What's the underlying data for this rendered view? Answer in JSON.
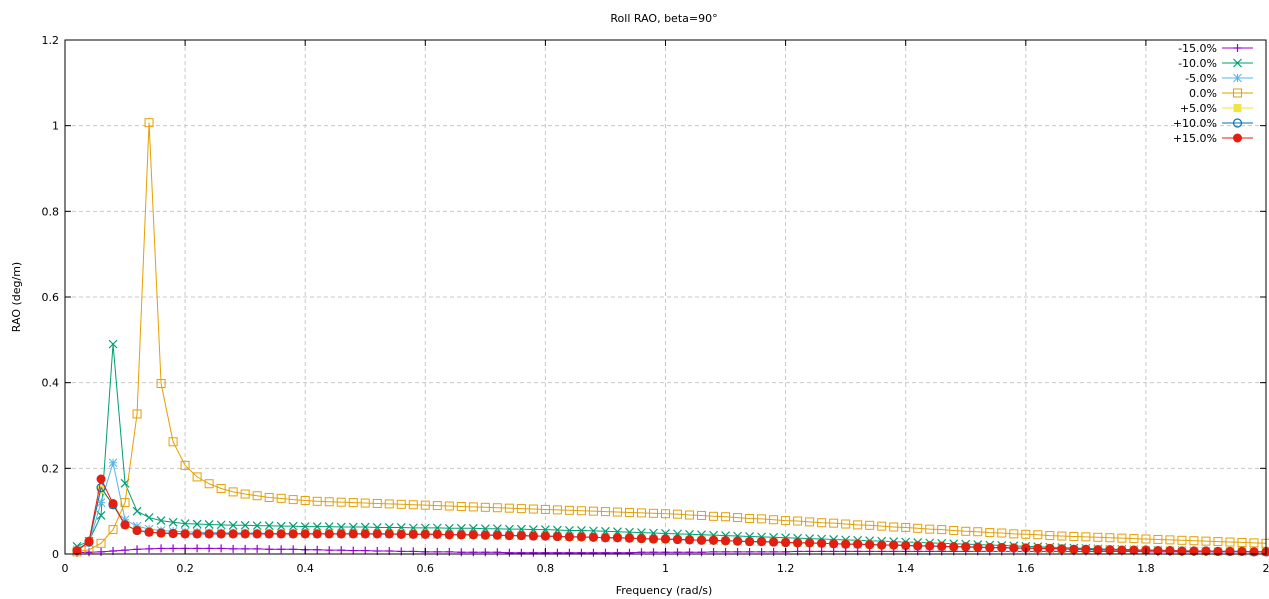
{
  "chart_data": {
    "type": "line",
    "title": "Roll RAO, beta=90°",
    "xlabel": "Frequency (rad/s)",
    "ylabel": "RAO  (deg/m)",
    "xlim": [
      0,
      2
    ],
    "ylim": [
      0,
      1.2
    ],
    "xticks": [
      0,
      0.2,
      0.4,
      0.6,
      0.8,
      1,
      1.2,
      1.4,
      1.6,
      1.8,
      2
    ],
    "yticks": [
      0,
      0.2,
      0.4,
      0.6,
      0.8,
      1,
      1.2
    ],
    "grid": true,
    "legend_position": "top-right",
    "x_start": 0.02,
    "x_step": 0.02,
    "count": 100,
    "series": [
      {
        "name": "-15.0%",
        "color": "#9400d3",
        "marker": "plus",
        "values": [
          0.003,
          0.004,
          0.005,
          0.007,
          0.009,
          0.011,
          0.012,
          0.013,
          0.013,
          0.013,
          0.013,
          0.013,
          0.013,
          0.012,
          0.012,
          0.012,
          0.011,
          0.011,
          0.011,
          0.01,
          0.01,
          0.009,
          0.009,
          0.008,
          0.008,
          0.007,
          0.007,
          0.006,
          0.006,
          0.005,
          0.005,
          0.005,
          0.004,
          0.004,
          0.004,
          0.004,
          0.003,
          0.003,
          0.003,
          0.003,
          0.003,
          0.003,
          0.003,
          0.003,
          0.003,
          0.003,
          0.003,
          0.004,
          0.004,
          0.004,
          0.004,
          0.004,
          0.004,
          0.005,
          0.005,
          0.005,
          0.005,
          0.005,
          0.005,
          0.005,
          0.006,
          0.006,
          0.006,
          0.006,
          0.006,
          0.006,
          0.006,
          0.006,
          0.006,
          0.006,
          0.006,
          0.006,
          0.006,
          0.006,
          0.006,
          0.006,
          0.006,
          0.006,
          0.006,
          0.006,
          0.006,
          0.006,
          0.006,
          0.006,
          0.006,
          0.006,
          0.006,
          0.006,
          0.006,
          0.005,
          0.005,
          0.005,
          0.005,
          0.005,
          0.005,
          0.005,
          0.005,
          0.005,
          0.005,
          0.005
        ]
      },
      {
        "name": "-10.0%",
        "color": "#009e73",
        "marker": "cross",
        "values": [
          0.018,
          0.03,
          0.09,
          0.49,
          0.165,
          0.1,
          0.085,
          0.078,
          0.074,
          0.071,
          0.07,
          0.069,
          0.068,
          0.067,
          0.067,
          0.066,
          0.066,
          0.065,
          0.065,
          0.064,
          0.064,
          0.064,
          0.063,
          0.063,
          0.063,
          0.062,
          0.062,
          0.062,
          0.061,
          0.061,
          0.061,
          0.06,
          0.06,
          0.06,
          0.059,
          0.059,
          0.058,
          0.058,
          0.057,
          0.057,
          0.056,
          0.055,
          0.055,
          0.054,
          0.053,
          0.052,
          0.051,
          0.05,
          0.049,
          0.048,
          0.047,
          0.046,
          0.045,
          0.044,
          0.043,
          0.042,
          0.041,
          0.04,
          0.039,
          0.038,
          0.037,
          0.036,
          0.035,
          0.034,
          0.033,
          0.032,
          0.031,
          0.03,
          0.029,
          0.028,
          0.027,
          0.026,
          0.025,
          0.024,
          0.023,
          0.022,
          0.021,
          0.02,
          0.019,
          0.018,
          0.017,
          0.016,
          0.015,
          0.014,
          0.013,
          0.012,
          0.011,
          0.011,
          0.01,
          0.009,
          0.009,
          0.008,
          0.008,
          0.007,
          0.007,
          0.006,
          0.006,
          0.006,
          0.005,
          0.005
        ]
      },
      {
        "name": "-5.0%",
        "color": "#56b4e9",
        "marker": "star",
        "values": [
          0.01,
          0.025,
          0.12,
          0.213,
          0.08,
          0.065,
          0.058,
          0.055,
          0.053,
          0.052,
          0.051,
          0.05,
          0.05,
          0.049,
          0.049,
          0.049,
          0.048,
          0.048,
          0.048,
          0.048,
          0.047,
          0.047,
          0.047,
          0.047,
          0.047,
          0.046,
          0.046,
          0.046,
          0.046,
          0.045,
          0.045,
          0.045,
          0.044,
          0.044,
          0.044,
          0.043,
          0.043,
          0.042,
          0.042,
          0.041,
          0.041,
          0.04,
          0.039,
          0.039,
          0.038,
          0.037,
          0.037,
          0.036,
          0.035,
          0.034,
          0.034,
          0.033,
          0.032,
          0.031,
          0.031,
          0.03,
          0.029,
          0.028,
          0.028,
          0.027,
          0.026,
          0.025,
          0.025,
          0.024,
          0.023,
          0.022,
          0.022,
          0.021,
          0.02,
          0.019,
          0.019,
          0.018,
          0.017,
          0.017,
          0.016,
          0.015,
          0.015,
          0.014,
          0.013,
          0.013,
          0.012,
          0.012,
          0.011,
          0.011,
          0.01,
          0.01,
          0.009,
          0.009,
          0.008,
          0.008,
          0.008,
          0.007,
          0.007,
          0.007,
          0.006,
          0.006,
          0.006,
          0.005,
          0.005,
          0.005
        ]
      },
      {
        "name": "0.0%",
        "color": "#e69f00",
        "marker": "square-open",
        "values": [
          0.005,
          0.01,
          0.025,
          0.057,
          0.12,
          0.327,
          1.007,
          0.398,
          0.262,
          0.207,
          0.18,
          0.164,
          0.153,
          0.145,
          0.14,
          0.136,
          0.132,
          0.13,
          0.127,
          0.125,
          0.123,
          0.122,
          0.121,
          0.12,
          0.119,
          0.118,
          0.117,
          0.116,
          0.115,
          0.114,
          0.113,
          0.112,
          0.111,
          0.11,
          0.109,
          0.108,
          0.107,
          0.106,
          0.105,
          0.104,
          0.103,
          0.102,
          0.101,
          0.1,
          0.099,
          0.098,
          0.097,
          0.096,
          0.095,
          0.094,
          0.093,
          0.091,
          0.09,
          0.088,
          0.087,
          0.085,
          0.083,
          0.082,
          0.08,
          0.078,
          0.077,
          0.075,
          0.073,
          0.072,
          0.07,
          0.068,
          0.067,
          0.065,
          0.063,
          0.062,
          0.06,
          0.058,
          0.057,
          0.055,
          0.053,
          0.052,
          0.05,
          0.049,
          0.047,
          0.046,
          0.045,
          0.043,
          0.042,
          0.041,
          0.04,
          0.039,
          0.038,
          0.037,
          0.036,
          0.035,
          0.034,
          0.033,
          0.032,
          0.031,
          0.03,
          0.029,
          0.028,
          0.027,
          0.026,
          0.025
        ]
      },
      {
        "name": "+5.0%",
        "color": "#f0e442",
        "marker": "square-filled",
        "values": [
          0.008,
          0.028,
          0.15,
          0.115,
          0.068,
          0.055,
          0.051,
          0.049,
          0.048,
          0.047,
          0.047,
          0.047,
          0.047,
          0.047,
          0.047,
          0.047,
          0.047,
          0.047,
          0.047,
          0.047,
          0.047,
          0.047,
          0.047,
          0.047,
          0.047,
          0.047,
          0.047,
          0.046,
          0.046,
          0.046,
          0.046,
          0.045,
          0.045,
          0.045,
          0.044,
          0.044,
          0.043,
          0.043,
          0.042,
          0.042,
          0.041,
          0.04,
          0.04,
          0.039,
          0.038,
          0.038,
          0.037,
          0.036,
          0.035,
          0.035,
          0.034,
          0.033,
          0.032,
          0.032,
          0.031,
          0.03,
          0.029,
          0.029,
          0.028,
          0.027,
          0.026,
          0.026,
          0.025,
          0.024,
          0.023,
          0.023,
          0.022,
          0.021,
          0.021,
          0.02,
          0.019,
          0.019,
          0.018,
          0.017,
          0.017,
          0.016,
          0.015,
          0.015,
          0.014,
          0.014,
          0.013,
          0.013,
          0.012,
          0.011,
          0.011,
          0.01,
          0.01,
          0.009,
          0.009,
          0.009,
          0.008,
          0.008,
          0.007,
          0.007,
          0.007,
          0.006,
          0.006,
          0.006,
          0.005,
          0.005
        ]
      },
      {
        "name": "+10.0%",
        "color": "#0072b2",
        "marker": "circle-open",
        "values": [
          0.008,
          0.028,
          0.155,
          0.115,
          0.068,
          0.055,
          0.051,
          0.049,
          0.048,
          0.047,
          0.047,
          0.047,
          0.047,
          0.047,
          0.047,
          0.047,
          0.047,
          0.047,
          0.047,
          0.047,
          0.047,
          0.047,
          0.047,
          0.047,
          0.047,
          0.047,
          0.047,
          0.046,
          0.046,
          0.046,
          0.046,
          0.045,
          0.045,
          0.045,
          0.044,
          0.044,
          0.043,
          0.043,
          0.042,
          0.042,
          0.041,
          0.04,
          0.04,
          0.039,
          0.038,
          0.038,
          0.037,
          0.036,
          0.035,
          0.035,
          0.034,
          0.033,
          0.032,
          0.032,
          0.031,
          0.03,
          0.029,
          0.029,
          0.028,
          0.027,
          0.026,
          0.026,
          0.025,
          0.024,
          0.023,
          0.023,
          0.022,
          0.021,
          0.021,
          0.02,
          0.019,
          0.019,
          0.018,
          0.017,
          0.017,
          0.016,
          0.015,
          0.015,
          0.014,
          0.014,
          0.013,
          0.013,
          0.012,
          0.011,
          0.011,
          0.01,
          0.01,
          0.009,
          0.009,
          0.009,
          0.008,
          0.008,
          0.007,
          0.007,
          0.007,
          0.006,
          0.006,
          0.006,
          0.005,
          0.005
        ]
      },
      {
        "name": "+15.0%",
        "color": "#e51e10",
        "marker": "circle-filled",
        "values": [
          0.008,
          0.03,
          0.175,
          0.118,
          0.068,
          0.055,
          0.051,
          0.049,
          0.048,
          0.047,
          0.047,
          0.047,
          0.047,
          0.047,
          0.047,
          0.047,
          0.047,
          0.047,
          0.047,
          0.047,
          0.047,
          0.047,
          0.047,
          0.047,
          0.047,
          0.047,
          0.047,
          0.046,
          0.046,
          0.046,
          0.046,
          0.045,
          0.045,
          0.045,
          0.044,
          0.044,
          0.043,
          0.043,
          0.042,
          0.042,
          0.041,
          0.04,
          0.04,
          0.039,
          0.038,
          0.038,
          0.037,
          0.036,
          0.035,
          0.035,
          0.034,
          0.033,
          0.032,
          0.032,
          0.031,
          0.03,
          0.029,
          0.029,
          0.028,
          0.027,
          0.026,
          0.026,
          0.025,
          0.024,
          0.023,
          0.023,
          0.022,
          0.021,
          0.021,
          0.02,
          0.019,
          0.019,
          0.018,
          0.017,
          0.017,
          0.016,
          0.015,
          0.015,
          0.014,
          0.014,
          0.013,
          0.013,
          0.012,
          0.011,
          0.011,
          0.01,
          0.01,
          0.009,
          0.009,
          0.009,
          0.008,
          0.008,
          0.007,
          0.007,
          0.007,
          0.006,
          0.006,
          0.006,
          0.005,
          0.005
        ]
      }
    ]
  }
}
